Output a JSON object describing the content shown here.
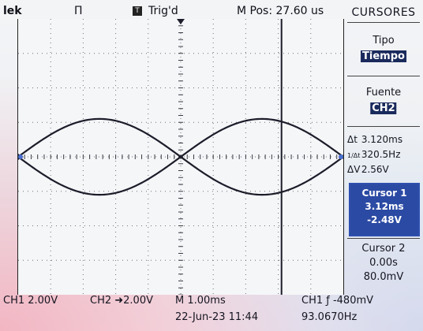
{
  "header": {
    "brand": "lek",
    "run_state": "Π",
    "trigger_icon_glyph": "T",
    "trigger_status": "Trig'd",
    "main_position": "M Pos: 27.60 us"
  },
  "side_menu": {
    "title": "CURSORES",
    "type_label": "Tipo",
    "type_value": "Tiempo",
    "source_label": "Fuente",
    "source_value": "CH2",
    "measurements": [
      {
        "symbol": "Δt",
        "value": "3.120ms"
      },
      {
        "symbol": "1/Δt",
        "value": "320.5Hz"
      },
      {
        "symbol": "ΔV",
        "value": "2.56V"
      }
    ],
    "cursor1": {
      "label": "Cursor 1",
      "time": "3.12ms",
      "voltage": "-2.48V"
    },
    "cursor2": {
      "label": "Cursor 2",
      "time": "0.00s",
      "voltage": "80.0mV"
    }
  },
  "footer": {
    "ch1_scale": "CH1  2.00V",
    "ch2_scale": "CH2 ➜2.00V",
    "timebase": "M 1.00ms",
    "trigger": "CH1  ƒ  -480mV",
    "datetime": "22-Jun-23 11:44",
    "frequency": "93.0670Hz"
  },
  "colors": {
    "trace": "#1c1d2a",
    "grid": "#3a3a44",
    "highlight": "#1a2a5c"
  },
  "chart_data": {
    "type": "line",
    "divisions_x": 10,
    "divisions_y": 8,
    "series": [
      {
        "shape": "sine",
        "amplitude_div": 1.1,
        "period_div": 10,
        "phase": "positive-first"
      },
      {
        "shape": "sine",
        "amplitude_div": 1.1,
        "period_div": 10,
        "phase": "negative-first"
      }
    ],
    "cursor_div": 8.1
  }
}
